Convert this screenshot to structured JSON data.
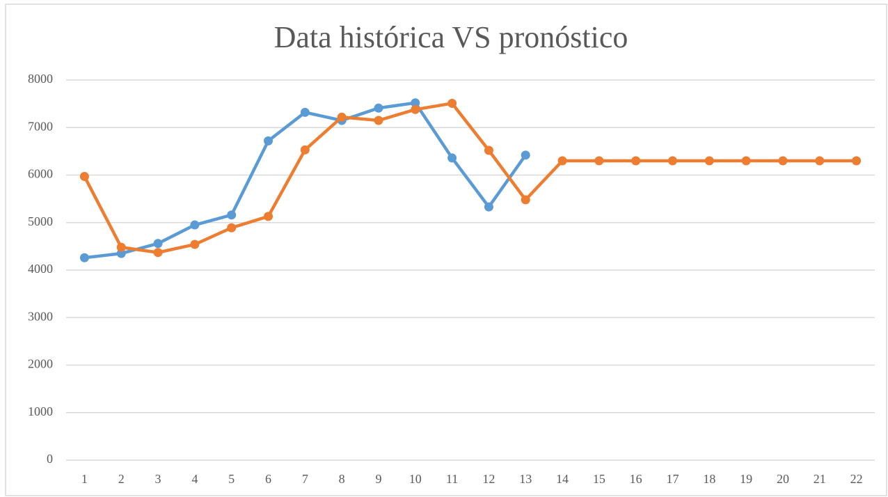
{
  "chart_data": {
    "type": "line",
    "title": "Data histórica VS pronóstico",
    "categories": [
      1,
      2,
      3,
      4,
      5,
      6,
      7,
      8,
      9,
      10,
      11,
      12,
      13,
      14,
      15,
      16,
      17,
      18,
      19,
      20,
      21,
      22
    ],
    "series": [
      {
        "color": "#5b9bd5",
        "values": [
          4260,
          4350,
          4560,
          4950,
          5160,
          6720,
          7320,
          7150,
          7410,
          7520,
          6360,
          5330,
          6420,
          null,
          null,
          null,
          null,
          null,
          null,
          null,
          null,
          null
        ]
      },
      {
        "color": "#ed7d31",
        "values": [
          5970,
          4480,
          4370,
          4540,
          4890,
          5130,
          6530,
          7220,
          7150,
          7380,
          7510,
          6520,
          5480,
          6300,
          6300,
          6300,
          6300,
          6300,
          6300,
          6300,
          6300,
          6300
        ]
      }
    ],
    "ylim": [
      0,
      8000
    ],
    "yticks": [
      0,
      1000,
      2000,
      3000,
      4000,
      5000,
      6000,
      7000,
      8000
    ],
    "grid": true
  }
}
